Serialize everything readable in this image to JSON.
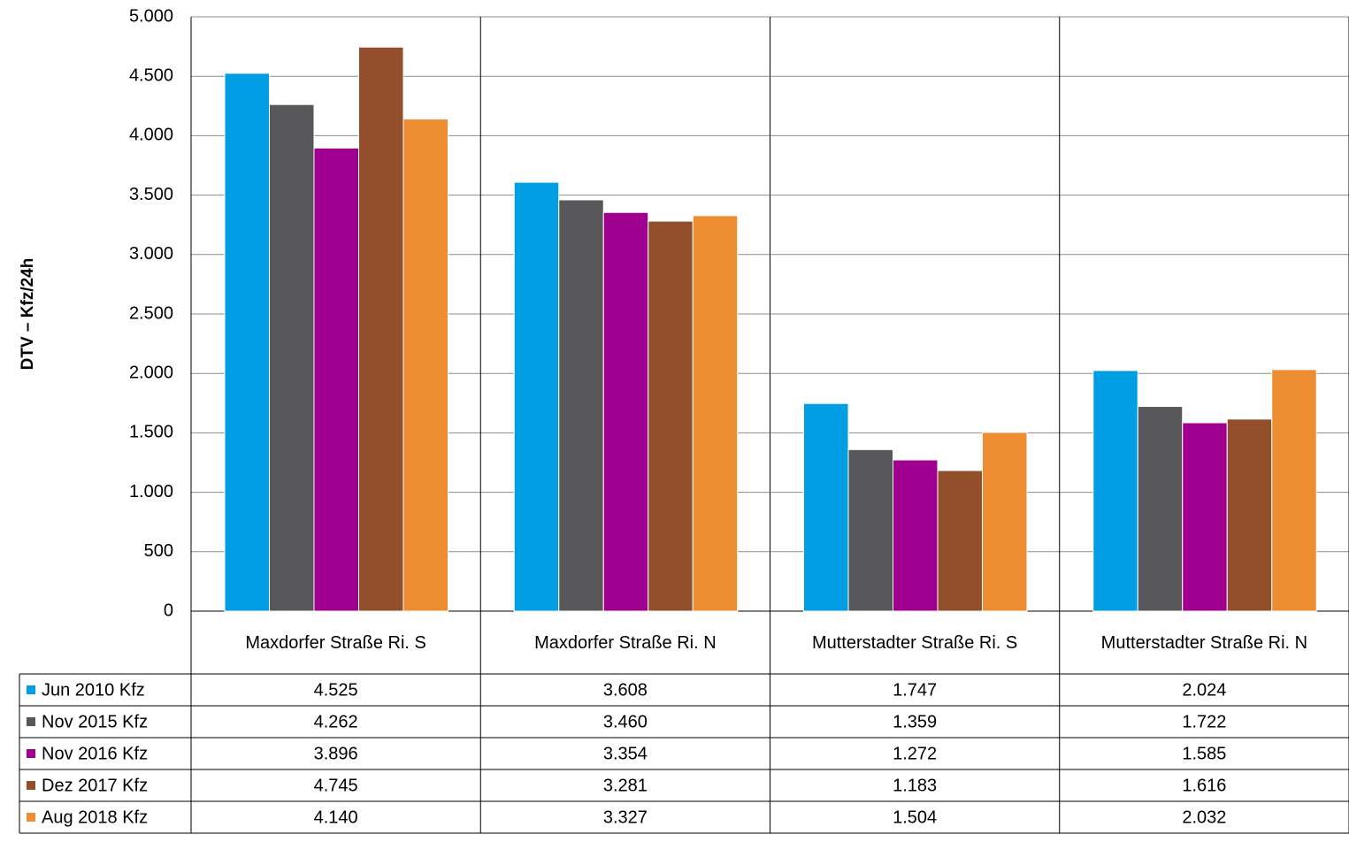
{
  "chart_data": {
    "type": "bar",
    "y_label": "DTV – Kfz/24h",
    "categories": [
      "Maxdorfer Straße Ri. S",
      "Maxdorfer Straße Ri. N",
      "Mutterstadter Straße Ri. S",
      "Mutterstadter Straße Ri. N"
    ],
    "series": [
      {
        "name": "Jun 2010 Kfz",
        "color": "#009fe3",
        "values": [
          4525,
          3608,
          1747,
          2024
        ],
        "value_labels": [
          "4.525",
          "3.608",
          "1.747",
          "2.024"
        ]
      },
      {
        "name": "Nov 2015 Kfz",
        "color": "#58585a",
        "values": [
          4262,
          3460,
          1359,
          1722
        ],
        "value_labels": [
          "4.262",
          "3.460",
          "1.359",
          "1.722"
        ]
      },
      {
        "name": "Nov 2016 Kfz",
        "color": "#a0008f",
        "values": [
          3896,
          3354,
          1272,
          1585
        ],
        "value_labels": [
          "3.896",
          "3.354",
          "1.272",
          "1.585"
        ]
      },
      {
        "name": "Dez 2017 Kfz",
        "color": "#934f2b",
        "values": [
          4745,
          3281,
          1183,
          1616
        ],
        "value_labels": [
          "4.745",
          "3.281",
          "1.183",
          "1.616"
        ]
      },
      {
        "name": "Aug 2018 Kfz",
        "color": "#ee8c32",
        "values": [
          4140,
          3327,
          1504,
          2032
        ],
        "value_labels": [
          "4.140",
          "3.327",
          "1.504",
          "2.032"
        ]
      }
    ],
    "ylim": [
      0,
      5000
    ],
    "yticks": [
      0,
      500,
      {
        "value": 1000,
        "label": "1.000"
      },
      {
        "value": 1500,
        "label": "1.500"
      },
      {
        "value": 2000,
        "label": "2.000"
      },
      {
        "value": 2500,
        "label": "2.500"
      },
      {
        "value": 3000,
        "label": "3.000"
      },
      {
        "value": 3500,
        "label": "3.500"
      },
      {
        "value": 4000,
        "label": "4.000"
      },
      {
        "value": 4500,
        "label": "4.500"
      },
      {
        "value": 5000,
        "label": "5.000"
      }
    ],
    "grid": true
  }
}
